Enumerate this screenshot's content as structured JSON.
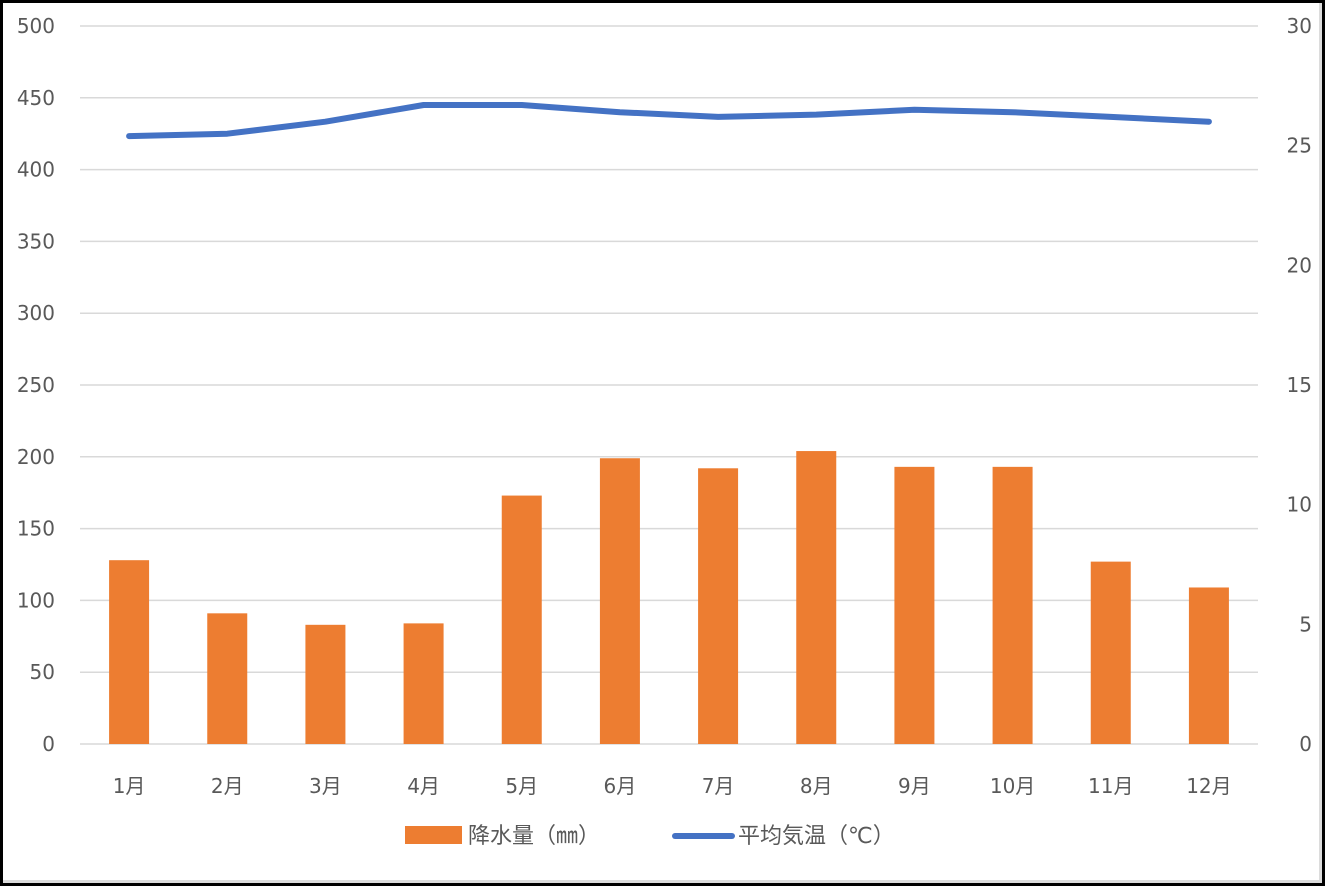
{
  "chart_data": {
    "type": "bar+line",
    "title": "",
    "categories": [
      "1月",
      "2月",
      "3月",
      "4月",
      "5月",
      "6月",
      "7月",
      "8月",
      "9月",
      "10月",
      "11月",
      "12月"
    ],
    "series": [
      {
        "name": "降水量（㎜）",
        "type": "bar",
        "axis": "left",
        "color": "#ED7D31",
        "values": [
          128,
          91,
          83,
          84,
          173,
          199,
          192,
          204,
          193,
          193,
          127,
          109
        ]
      },
      {
        "name": "平均気温（℃）",
        "type": "line",
        "axis": "right",
        "color": "#4472C4",
        "values": [
          25.4,
          25.5,
          26.0,
          26.7,
          26.7,
          26.4,
          26.2,
          26.3,
          26.5,
          26.4,
          26.2,
          26.0
        ]
      }
    ],
    "left_axis": {
      "label": "",
      "ylim": [
        0,
        500
      ],
      "ticks": [
        "0",
        "50",
        "100",
        "150",
        "200",
        "250",
        "300",
        "350",
        "400",
        "450",
        "500"
      ]
    },
    "right_axis": {
      "label": "",
      "ylim": [
        0,
        30
      ],
      "ticks": [
        "0",
        "5",
        "10",
        "15",
        "20",
        "25",
        "30"
      ]
    },
    "xlabel": "",
    "grid": true,
    "legend_position": "bottom"
  },
  "legend": {
    "bar_label": "降水量（㎜）",
    "line_label": "平均気温（℃）"
  }
}
